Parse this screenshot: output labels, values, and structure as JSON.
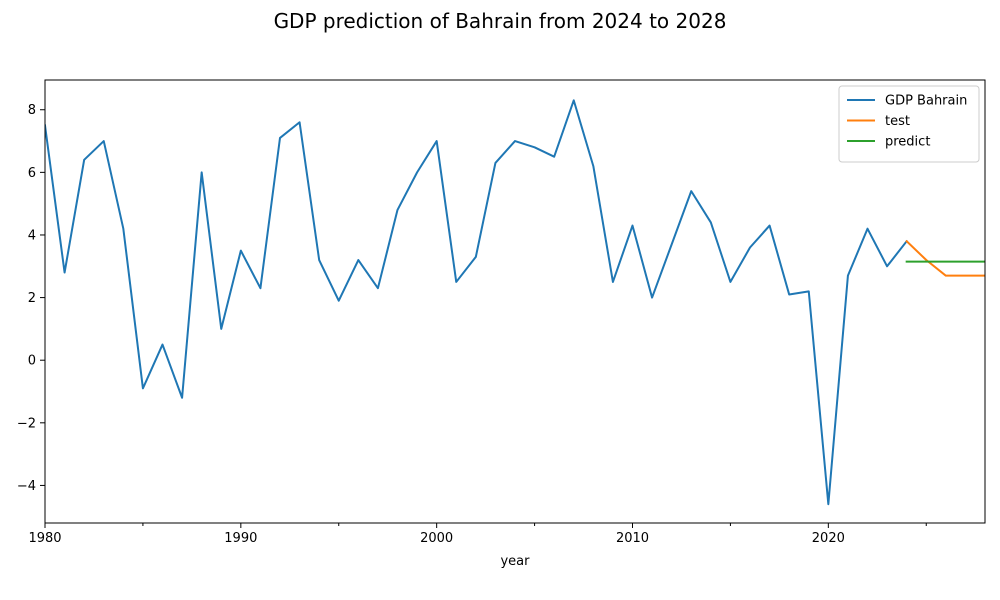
{
  "chart_data": {
    "type": "line",
    "title": "GDP prediction of Bahrain from 2024 to 2028",
    "xlabel": "year",
    "ylabel": "",
    "xlim": [
      1980,
      2028
    ],
    "ylim": [
      -5.2,
      8.95
    ],
    "x_ticks": [
      1980,
      1990,
      2000,
      2010,
      2020
    ],
    "x_tick_labels": [
      "1980",
      "1990",
      "2000",
      "2010",
      "2020"
    ],
    "x_minor_ticks": [
      1985,
      1995,
      2005,
      2015,
      2025
    ],
    "y_ticks": [
      8,
      6,
      4,
      2,
      0,
      -2,
      -4
    ],
    "y_tick_labels": [
      "8",
      "6",
      "4",
      "2",
      "0",
      "−2",
      "−4"
    ],
    "grid": false,
    "legend_position": "top-right",
    "series": [
      {
        "name": "GDP Bahrain",
        "color": "#1f77b4",
        "x": [
          1980,
          1981,
          1982,
          1983,
          1984,
          1985,
          1986,
          1987,
          1988,
          1989,
          1990,
          1991,
          1992,
          1993,
          1994,
          1995,
          1996,
          1997,
          1998,
          1999,
          2000,
          2001,
          2002,
          2003,
          2004,
          2005,
          2006,
          2007,
          2008,
          2009,
          2010,
          2011,
          2012,
          2013,
          2014,
          2015,
          2016,
          2017,
          2018,
          2019,
          2020,
          2021,
          2022,
          2023,
          2024
        ],
        "values": [
          7.5,
          2.8,
          6.4,
          7.0,
          4.2,
          -0.9,
          0.5,
          -1.2,
          6.0,
          1.0,
          3.5,
          2.3,
          7.1,
          7.6,
          3.2,
          1.9,
          3.2,
          2.3,
          4.8,
          6.0,
          7.0,
          2.5,
          3.3,
          6.3,
          7.0,
          6.8,
          6.5,
          8.3,
          6.2,
          2.5,
          4.3,
          2.0,
          3.7,
          5.4,
          4.4,
          2.5,
          3.6,
          4.3,
          2.1,
          2.2,
          -4.6,
          2.7,
          4.2,
          3.0,
          3.8
        ]
      },
      {
        "name": "test",
        "color": "#ff7f0e",
        "x": [
          2024,
          2025,
          2026,
          2027,
          2028
        ],
        "values": [
          3.8,
          3.2,
          2.7,
          2.7,
          2.7
        ]
      },
      {
        "name": "predict",
        "color": "#2ca02c",
        "x": [
          2024,
          2025,
          2026,
          2027,
          2028
        ],
        "values": [
          3.15,
          3.15,
          3.15,
          3.15,
          3.15
        ]
      }
    ]
  }
}
